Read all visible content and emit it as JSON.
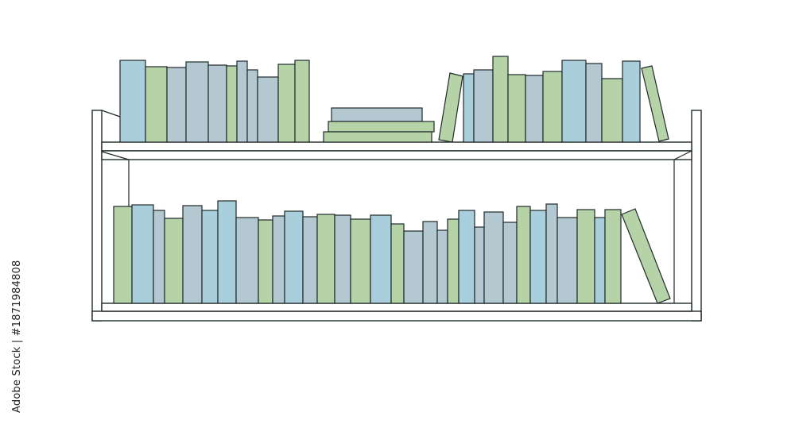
{
  "credit": {
    "text": "Adobe Stock | #1871984808"
  },
  "watermark": {
    "text": "Adobe Stock"
  },
  "colors": {
    "blue": "#a9cfdc",
    "grey": "#b4c8d2",
    "green": "#b6d3a8",
    "outline": "#1f2a2a",
    "shelf": "#ffffff"
  }
}
